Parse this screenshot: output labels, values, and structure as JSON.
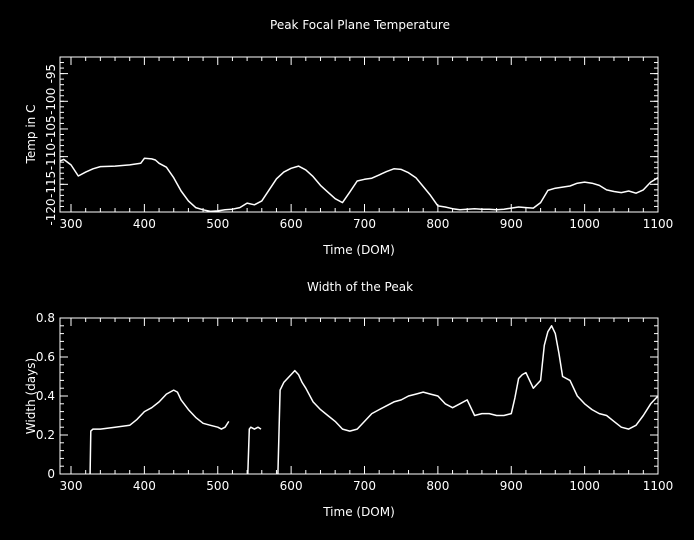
{
  "chart_data": [
    {
      "type": "line",
      "title": "Peak Focal Plane Temperature",
      "xlabel": "Time (DOM)",
      "ylabel": "Temp in C",
      "xlim": [
        285,
        1100
      ],
      "ylim": [
        -120,
        -92
      ],
      "grid": false,
      "xticks": [
        300,
        400,
        500,
        600,
        700,
        800,
        900,
        1000,
        1100
      ],
      "yticks": [
        -120,
        -115,
        -110,
        -105,
        -100,
        -95
      ],
      "series": [
        {
          "color": "#ffffff",
          "x": [
            285,
            290,
            300,
            310,
            320,
            330,
            340,
            360,
            380,
            395,
            400,
            410,
            415,
            420,
            430,
            440,
            450,
            460,
            470,
            480,
            490,
            500,
            510,
            520,
            530,
            540,
            550,
            560,
            570,
            580,
            590,
            600,
            610,
            620,
            630,
            640,
            650,
            660,
            670,
            680,
            690,
            700,
            710,
            720,
            730,
            740,
            750,
            760,
            770,
            780,
            790,
            800,
            810,
            820,
            830,
            840,
            850,
            860,
            870,
            880,
            890,
            900,
            910,
            920,
            930,
            940,
            950,
            960,
            970,
            980,
            990,
            1000,
            1010,
            1020,
            1030,
            1040,
            1050,
            1060,
            1070,
            1080,
            1090,
            1100
          ],
          "y": [
            -110.8,
            -110.5,
            -111.5,
            -113.5,
            -112.8,
            -112.2,
            -111.8,
            -111.7,
            -111.5,
            -111.2,
            -110.3,
            -110.4,
            -110.6,
            -111.2,
            -111.9,
            -113.8,
            -116.2,
            -118.0,
            -119.2,
            -119.6,
            -119.9,
            -119.8,
            -119.6,
            -119.5,
            -119.2,
            -118.4,
            -118.7,
            -118.0,
            -116.0,
            -114.0,
            -112.8,
            -112.1,
            -111.7,
            -112.4,
            -113.6,
            -115.2,
            -116.4,
            -117.6,
            -118.3,
            -116.4,
            -114.4,
            -114.1,
            -113.9,
            -113.3,
            -112.7,
            -112.2,
            -112.3,
            -112.9,
            -113.8,
            -115.4,
            -117.0,
            -118.9,
            -119.1,
            -119.4,
            -119.6,
            -119.5,
            -119.4,
            -119.5,
            -119.5,
            -119.6,
            -119.5,
            -119.3,
            -119.1,
            -119.2,
            -119.3,
            -118.3,
            -116.1,
            -115.7,
            -115.5,
            -115.3,
            -114.8,
            -114.6,
            -114.8,
            -115.2,
            -116.0,
            -116.3,
            -116.5,
            -116.2,
            -116.6,
            -116.0,
            -114.6,
            -113.8
          ]
        }
      ]
    },
    {
      "type": "line",
      "title": "Width of the Peak",
      "xlabel": "Time (DOM)",
      "ylabel": "Width (days)",
      "xlim": [
        285,
        1100
      ],
      "ylim": [
        0,
        0.8
      ],
      "grid": false,
      "xticks": [
        300,
        400,
        500,
        600,
        700,
        800,
        900,
        1000,
        1100
      ],
      "yticks": [
        0,
        0.2,
        0.4,
        0.6,
        0.8
      ],
      "series": [
        {
          "color": "#ffffff",
          "segments": [
            {
              "x": [
                326,
                327,
                330,
                340,
                360,
                380,
                390,
                400,
                410,
                420,
                430,
                440,
                445,
                450,
                460,
                470,
                480,
                490,
                500,
                505,
                510,
                515
              ],
              "y": [
                0.0,
                0.22,
                0.23,
                0.23,
                0.24,
                0.25,
                0.28,
                0.32,
                0.34,
                0.37,
                0.41,
                0.43,
                0.42,
                0.38,
                0.33,
                0.29,
                0.26,
                0.25,
                0.24,
                0.23,
                0.24,
                0.27
              ]
            },
            {
              "x": [
                541,
                543,
                545,
                550,
                555,
                559
              ],
              "y": [
                0.0,
                0.23,
                0.24,
                0.23,
                0.24,
                0.23
              ]
            },
            {
              "x": [
                582,
                585,
                590,
                600,
                605,
                610,
                615,
                620,
                630,
                640,
                650,
                660,
                670,
                680,
                690,
                700,
                710,
                720,
                730,
                740,
                750,
                760,
                770,
                780,
                790,
                800,
                810,
                820,
                830,
                840,
                850,
                860,
                870,
                880,
                890,
                900,
                905,
                910,
                915,
                920,
                930,
                940,
                945,
                950,
                955,
                960,
                965,
                970,
                980,
                990,
                1000,
                1010,
                1020,
                1030,
                1040,
                1050,
                1060,
                1070,
                1080,
                1090,
                1100
              ],
              "y": [
                0.0,
                0.43,
                0.47,
                0.51,
                0.53,
                0.51,
                0.47,
                0.44,
                0.37,
                0.33,
                0.3,
                0.27,
                0.23,
                0.22,
                0.23,
                0.27,
                0.31,
                0.33,
                0.35,
                0.37,
                0.38,
                0.4,
                0.41,
                0.42,
                0.41,
                0.4,
                0.36,
                0.34,
                0.36,
                0.38,
                0.3,
                0.31,
                0.31,
                0.3,
                0.3,
                0.31,
                0.39,
                0.49,
                0.51,
                0.52,
                0.44,
                0.48,
                0.66,
                0.73,
                0.76,
                0.72,
                0.62,
                0.5,
                0.48,
                0.4,
                0.36,
                0.33,
                0.31,
                0.3,
                0.27,
                0.24,
                0.23,
                0.25,
                0.3,
                0.36,
                0.4
              ]
            }
          ]
        }
      ]
    }
  ]
}
